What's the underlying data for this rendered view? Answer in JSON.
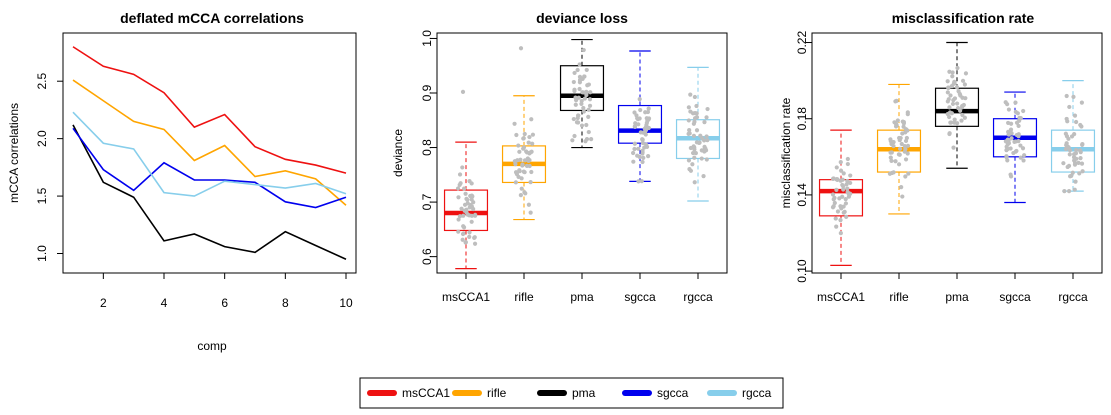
{
  "colors": {
    "msCCA1": "#ee1111",
    "rifle": "#ffa500",
    "pma": "#000000",
    "sgcca": "#0000ee",
    "rgcca": "#87ceeb",
    "jitter": "#bebebe"
  },
  "legend": {
    "entries": [
      "msCCA1",
      "rifle",
      "pma",
      "sgcca",
      "rgcca"
    ],
    "placement": "bottom-center"
  },
  "chart_data": [
    {
      "type": "line",
      "title": "deflated mCCA correlations",
      "xlabel": "comp",
      "ylabel": "mCCA correlations",
      "xlim": [
        1,
        10
      ],
      "ylim": [
        0.9,
        2.85
      ],
      "xticks": [
        2,
        4,
        6,
        8,
        10
      ],
      "yticks": [
        "1.0",
        "1.5",
        "2.0",
        "2.5"
      ],
      "x": [
        1,
        2,
        3,
        4,
        5,
        6,
        7,
        8,
        9,
        10
      ],
      "series": [
        {
          "name": "msCCA1",
          "values": [
            2.8,
            2.63,
            2.56,
            2.4,
            2.1,
            2.21,
            1.93,
            1.82,
            1.77,
            1.7
          ]
        },
        {
          "name": "rifle",
          "values": [
            2.51,
            2.33,
            2.15,
            2.08,
            1.81,
            1.94,
            1.67,
            1.72,
            1.65,
            1.42
          ]
        },
        {
          "name": "pma",
          "values": [
            2.12,
            1.62,
            1.49,
            1.11,
            1.17,
            1.06,
            1.01,
            1.19,
            1.07,
            0.95
          ]
        },
        {
          "name": "sgcca",
          "values": [
            2.09,
            1.73,
            1.55,
            1.79,
            1.64,
            1.64,
            1.62,
            1.45,
            1.4,
            1.49
          ]
        },
        {
          "name": "rgcca",
          "values": [
            2.23,
            1.96,
            1.91,
            1.53,
            1.5,
            1.63,
            1.6,
            1.57,
            1.61,
            1.52
          ]
        }
      ]
    },
    {
      "type": "box",
      "title": "deviance loss",
      "xlabel": "",
      "ylabel": "deviance",
      "ylim": [
        0.57,
        1.01
      ],
      "yticks": [
        "0.6",
        "0.7",
        "0.8",
        "0.9",
        "1.0"
      ],
      "categories": [
        "msCCA1",
        "rifle",
        "pma",
        "sgcca",
        "rgcca"
      ],
      "boxes": [
        {
          "name": "msCCA1",
          "min": 0.578,
          "q1": 0.648,
          "median": 0.68,
          "q3": 0.722,
          "max": 0.81,
          "outliers": [
            0.902
          ]
        },
        {
          "name": "rifle",
          "min": 0.668,
          "q1": 0.736,
          "median": 0.77,
          "q3": 0.803,
          "max": 0.895,
          "outliers": [
            0.982
          ]
        },
        {
          "name": "pma",
          "min": 0.8,
          "q1": 0.868,
          "median": 0.895,
          "q3": 0.95,
          "max": 0.998,
          "outliers": []
        },
        {
          "name": "sgcca",
          "min": 0.738,
          "q1": 0.808,
          "median": 0.831,
          "q3": 0.877,
          "max": 0.977,
          "outliers": []
        },
        {
          "name": "rgcca",
          "min": 0.702,
          "q1": 0.78,
          "median": 0.817,
          "q3": 0.851,
          "max": 0.947,
          "outliers": []
        }
      ]
    },
    {
      "type": "box",
      "title": "misclassification rate",
      "xlabel": "",
      "ylabel": "misclassification rate",
      "ylim": [
        0.099,
        0.225
      ],
      "yticks": [
        "0.10",
        "0.14",
        "0.18",
        "0.22"
      ],
      "categories": [
        "msCCA1",
        "rifle",
        "pma",
        "sgcca",
        "rgcca"
      ],
      "boxes": [
        {
          "name": "msCCA1",
          "min": 0.103,
          "q1": 0.129,
          "median": 0.142,
          "q3": 0.148,
          "max": 0.174,
          "outliers": []
        },
        {
          "name": "rifle",
          "min": 0.13,
          "q1": 0.152,
          "median": 0.164,
          "q3": 0.174,
          "max": 0.198,
          "outliers": []
        },
        {
          "name": "pma",
          "min": 0.154,
          "q1": 0.176,
          "median": 0.184,
          "q3": 0.196,
          "max": 0.22,
          "outliers": []
        },
        {
          "name": "sgcca",
          "min": 0.136,
          "q1": 0.16,
          "median": 0.17,
          "q3": 0.18,
          "max": 0.194,
          "outliers": []
        },
        {
          "name": "rgcca",
          "min": 0.142,
          "q1": 0.152,
          "median": 0.164,
          "q3": 0.174,
          "max": 0.2,
          "outliers": []
        }
      ]
    }
  ]
}
